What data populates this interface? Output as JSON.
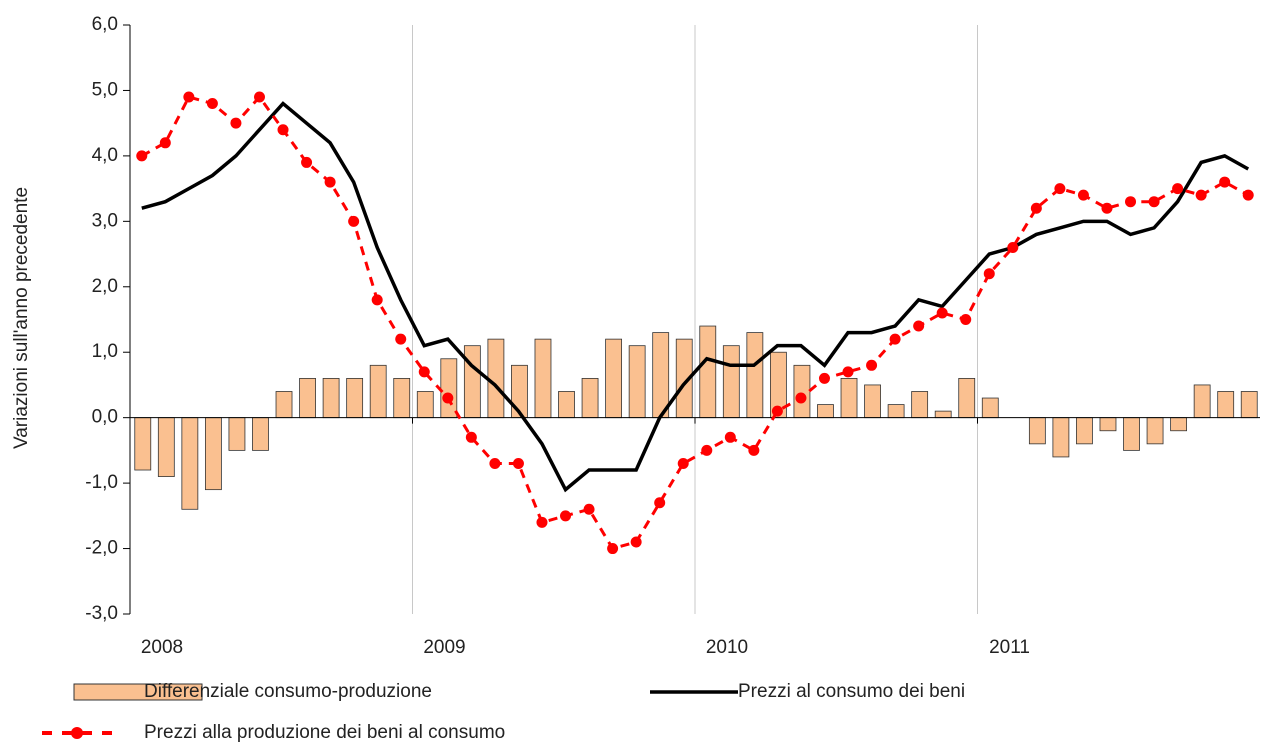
{
  "chart_data": {
    "type": "bar-line",
    "y_label": "Variazioni sull'anno precedente",
    "categories": [
      "2008",
      null,
      null,
      null,
      null,
      null,
      null,
      null,
      null,
      null,
      null,
      null,
      "2009",
      null,
      null,
      null,
      null,
      null,
      null,
      null,
      null,
      null,
      null,
      null,
      "2010",
      null,
      null,
      null,
      null,
      null,
      null,
      null,
      null,
      null,
      null,
      null,
      "2011",
      null,
      null,
      null,
      null,
      null,
      null,
      null,
      null,
      null,
      null,
      null
    ],
    "ylim": [
      -3,
      6
    ],
    "yticks": [
      {
        "value": -3,
        "label": "-3,0"
      },
      {
        "value": -2,
        "label": "-2,0"
      },
      {
        "value": -1,
        "label": "-1,0"
      },
      {
        "value": 0,
        "label": "0,0"
      },
      {
        "value": 1,
        "label": "1,0"
      },
      {
        "value": 2,
        "label": "2,0"
      },
      {
        "value": 3,
        "label": "3,0"
      },
      {
        "value": 4,
        "label": "4,0"
      },
      {
        "value": 5,
        "label": "5,0"
      },
      {
        "value": 6,
        "label": "6,0"
      }
    ],
    "series": [
      {
        "name": "Differenziale consumo-produzione",
        "kind": "bar",
        "color": "#fac090",
        "values": [
          -0.8,
          -0.9,
          -1.4,
          -1.1,
          -0.5,
          -0.5,
          0.4,
          0.6,
          0.6,
          0.6,
          0.8,
          0.6,
          0.4,
          0.9,
          1.1,
          1.2,
          0.8,
          1.2,
          0.4,
          0.6,
          1.2,
          1.1,
          1.3,
          1.2,
          1.4,
          1.1,
          1.3,
          1.0,
          0.8,
          0.2,
          0.6,
          0.5,
          0.2,
          0.4,
          0.1,
          0.6,
          0.3,
          0,
          -0.4,
          -0.6,
          -0.4,
          -0.2,
          -0.5,
          -0.4,
          -0.2,
          0.5,
          0.4,
          0.4
        ]
      },
      {
        "name": "Prezzi al consumo dei beni",
        "kind": "line",
        "color": "#000000",
        "values": [
          3.2,
          3.3,
          3.5,
          3.7,
          4.0,
          4.4,
          4.8,
          4.5,
          4.2,
          3.6,
          2.6,
          1.8,
          1.1,
          1.2,
          0.8,
          0.5,
          0.1,
          -0.4,
          -1.1,
          -0.8,
          -0.8,
          -0.8,
          0.0,
          0.5,
          0.9,
          0.8,
          0.8,
          1.1,
          1.1,
          0.8,
          1.3,
          1.3,
          1.4,
          1.8,
          1.7,
          2.1,
          2.5,
          2.6,
          2.8,
          2.9,
          3.0,
          3.0,
          2.8,
          2.9,
          3.3,
          3.9,
          4.0,
          3.8
        ]
      },
      {
        "name": "Prezzi alla produzione dei beni al consumo",
        "kind": "dashed-dots",
        "color": "#ff0000",
        "values": [
          4.0,
          4.2,
          4.9,
          4.8,
          4.5,
          4.9,
          4.4,
          3.9,
          3.6,
          3.0,
          1.8,
          1.2,
          0.7,
          0.3,
          -0.3,
          -0.7,
          -0.7,
          -1.6,
          -1.5,
          -1.4,
          -2.0,
          -1.9,
          -1.3,
          -0.7,
          -0.5,
          -0.3,
          -0.5,
          0.1,
          0.3,
          0.6,
          0.7,
          0.8,
          1.2,
          1.4,
          1.6,
          1.5,
          2.2,
          2.6,
          3.2,
          3.5,
          3.4,
          3.2,
          3.3,
          3.3,
          3.5,
          3.4,
          3.6,
          3.4
        ]
      }
    ],
    "grid": true
  }
}
